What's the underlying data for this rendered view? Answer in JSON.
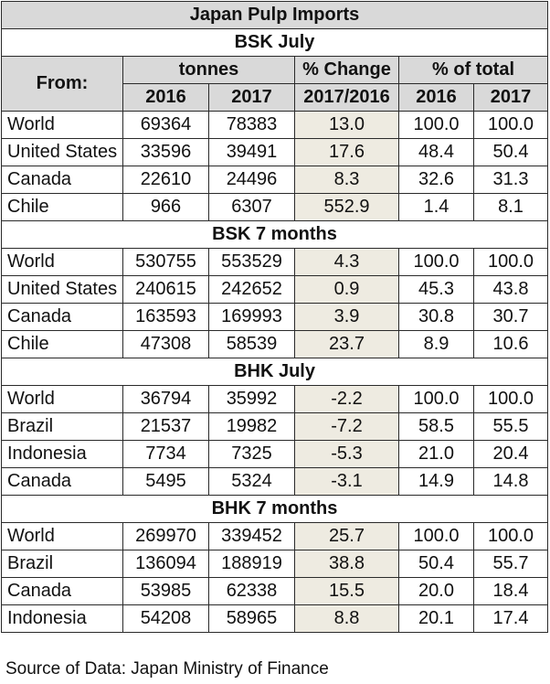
{
  "title": "Japan Pulp Imports",
  "header": {
    "from": "From:",
    "tonnes": "tonnes",
    "change": "% Change",
    "total": "% of total",
    "year1": "2016",
    "year2": "2017",
    "change_period": "2017/2016"
  },
  "sections": [
    {
      "title": "BSK July",
      "rows": [
        {
          "country": "World",
          "t2016": "69364",
          "t2017": "78383",
          "chg": "13.0",
          "p2016": "100.0",
          "p2017": "100.0"
        },
        {
          "country": "United States",
          "t2016": "33596",
          "t2017": "39491",
          "chg": "17.6",
          "p2016": "48.4",
          "p2017": "50.4"
        },
        {
          "country": "Canada",
          "t2016": "22610",
          "t2017": "24496",
          "chg": "8.3",
          "p2016": "32.6",
          "p2017": "31.3"
        },
        {
          "country": "Chile",
          "t2016": "966",
          "t2017": "6307",
          "chg": "552.9",
          "p2016": "1.4",
          "p2017": "8.1"
        }
      ]
    },
    {
      "title": "BSK 7 months",
      "rows": [
        {
          "country": "World",
          "t2016": "530755",
          "t2017": "553529",
          "chg": "4.3",
          "p2016": "100.0",
          "p2017": "100.0"
        },
        {
          "country": "United States",
          "t2016": "240615",
          "t2017": "242652",
          "chg": "0.9",
          "p2016": "45.3",
          "p2017": "43.8"
        },
        {
          "country": "Canada",
          "t2016": "163593",
          "t2017": "169993",
          "chg": "3.9",
          "p2016": "30.8",
          "p2017": "30.7"
        },
        {
          "country": "Chile",
          "t2016": "47308",
          "t2017": "58539",
          "chg": "23.7",
          "p2016": "8.9",
          "p2017": "10.6"
        }
      ]
    },
    {
      "title": "BHK July",
      "rows": [
        {
          "country": "World",
          "t2016": "36794",
          "t2017": "35992",
          "chg": "-2.2",
          "p2016": "100.0",
          "p2017": "100.0"
        },
        {
          "country": "Brazil",
          "t2016": "21537",
          "t2017": "19982",
          "chg": "-7.2",
          "p2016": "58.5",
          "p2017": "55.5"
        },
        {
          "country": "Indonesia",
          "t2016": "7734",
          "t2017": "7325",
          "chg": "-5.3",
          "p2016": "21.0",
          "p2017": "20.4"
        },
        {
          "country": "Canada",
          "t2016": "5495",
          "t2017": "5324",
          "chg": "-3.1",
          "p2016": "14.9",
          "p2017": "14.8"
        }
      ]
    },
    {
      "title": "BHK 7 months",
      "rows": [
        {
          "country": "World",
          "t2016": "269970",
          "t2017": "339452",
          "chg": "25.7",
          "p2016": "100.0",
          "p2017": "100.0"
        },
        {
          "country": "Brazil",
          "t2016": "136094",
          "t2017": "188919",
          "chg": "38.8",
          "p2016": "50.4",
          "p2017": "55.7"
        },
        {
          "country": "Canada",
          "t2016": "53985",
          "t2017": "62338",
          "chg": "15.5",
          "p2016": "20.0",
          "p2017": "18.4"
        },
        {
          "country": "Indonesia",
          "t2016": "54208",
          "t2017": "58965",
          "chg": "8.8",
          "p2016": "20.1",
          "p2017": "17.4"
        }
      ]
    }
  ],
  "source": "Source of Data: Japan Ministry of Finance"
}
